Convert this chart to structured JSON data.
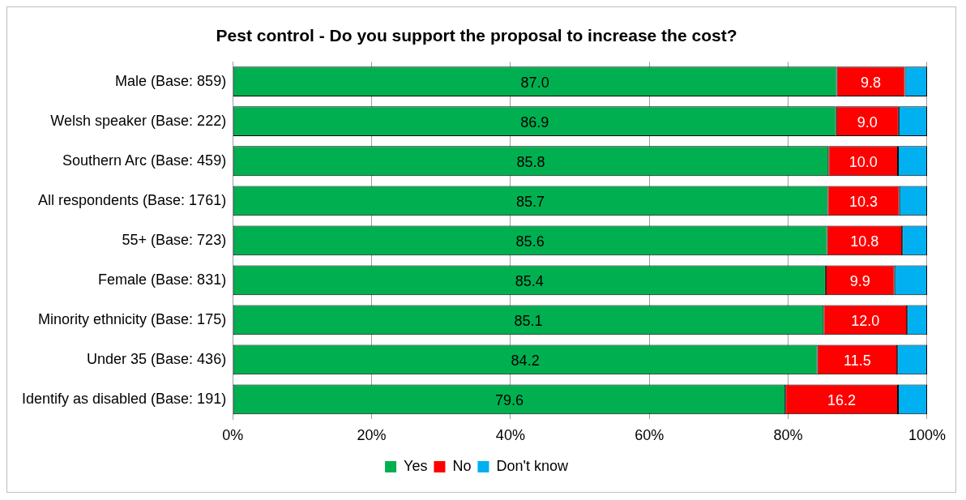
{
  "chart_data": {
    "type": "bar",
    "orientation": "horizontal",
    "stacked": true,
    "title": "Pest control - Do you support the proposal to increase the cost?",
    "categories": [
      "Male (Base: 859)",
      "Welsh speaker (Base: 222)",
      "Southern Arc (Base: 459)",
      "All respondents (Base: 1761)",
      "55+ (Base: 723)",
      "Female (Base: 831)",
      "Minority ethnicity (Base: 175)",
      "Under 35 (Base: 436)",
      "Identify as disabled (Base: 191)"
    ],
    "series": [
      {
        "name": "Yes",
        "color": "#00b050",
        "values": [
          87.0,
          86.9,
          85.8,
          85.7,
          85.6,
          85.4,
          85.1,
          84.2,
          79.6
        ],
        "value_labels": [
          "87.0",
          "86.9",
          "85.8",
          "85.7",
          "85.6",
          "85.4",
          "85.1",
          "84.2",
          "79.6"
        ]
      },
      {
        "name": "No",
        "color": "#ff0000",
        "values": [
          9.8,
          9.0,
          10.0,
          10.3,
          10.8,
          9.9,
          12.0,
          11.5,
          16.2
        ],
        "value_labels": [
          "9.8",
          "9.0",
          "10.0",
          "10.3",
          "10.8",
          "9.9",
          "12.0",
          "11.5",
          "16.2"
        ]
      },
      {
        "name": "Don't know",
        "color": "#00b0f0",
        "values": [
          3.2,
          4.1,
          4.2,
          4.0,
          3.6,
          4.7,
          2.9,
          4.3,
          4.2
        ]
      }
    ],
    "xlim": [
      0,
      100
    ],
    "xticks": [
      {
        "value": 0,
        "label": "0%"
      },
      {
        "value": 20,
        "label": "20%"
      },
      {
        "value": 40,
        "label": "40%"
      },
      {
        "value": 60,
        "label": "60%"
      },
      {
        "value": 80,
        "label": "80%"
      },
      {
        "value": 100,
        "label": "100%"
      }
    ],
    "grid": "x",
    "legend": "bottom"
  }
}
